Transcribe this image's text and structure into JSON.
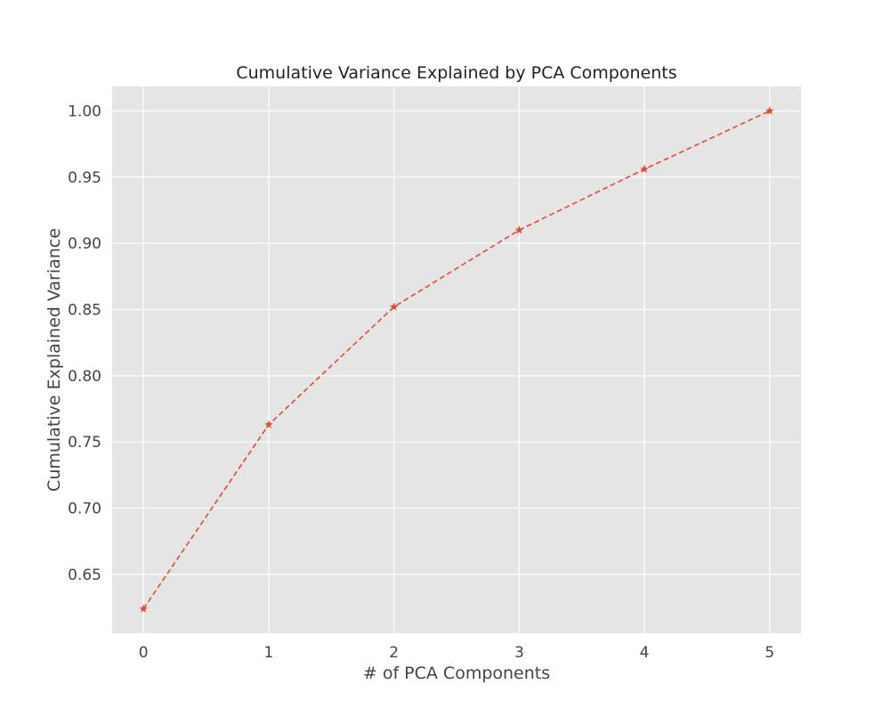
{
  "chart_data": {
    "type": "line",
    "title": "Cumulative Variance Explained by PCA Components",
    "xlabel": "# of PCA Components",
    "ylabel": "Cumulative Explained Variance",
    "x": [
      0,
      1,
      2,
      3,
      4,
      5
    ],
    "series": [
      {
        "values": [
          0.624,
          0.763,
          0.852,
          0.91,
          0.956,
          1.0
        ],
        "color": "#e24a33",
        "line_style": "dashed",
        "marker": "star"
      }
    ],
    "xlim": [
      -0.25,
      5.25
    ],
    "ylim": [
      0.6055,
      1.0185
    ],
    "xticks": [
      0,
      1,
      2,
      3,
      4,
      5
    ],
    "xtick_labels": [
      "0",
      "1",
      "2",
      "3",
      "4",
      "5"
    ],
    "yticks": [
      0.65,
      0.7,
      0.75,
      0.8,
      0.85,
      0.9,
      0.95,
      1.0
    ],
    "ytick_labels": [
      "0.65",
      "0.70",
      "0.75",
      "0.80",
      "0.85",
      "0.90",
      "0.95",
      "1.00"
    ],
    "grid": true,
    "legend": "none",
    "background_color": "#e5e5e5",
    "grid_color": "#ffffff"
  }
}
